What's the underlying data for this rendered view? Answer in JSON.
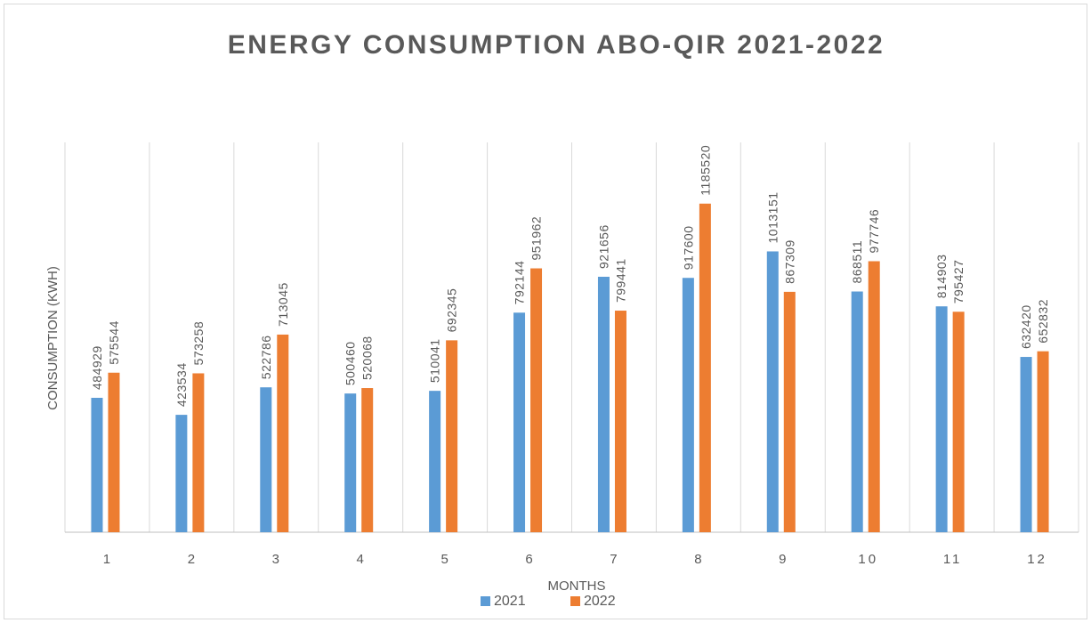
{
  "chart_data": {
    "type": "bar",
    "title": "ENERGY CONSUMPTION ABO-QIR 2021-2022",
    "x_label": "MONTHS",
    "y_label": "CONSUMPTION (KWH)",
    "categories": [
      "1",
      "2",
      "3",
      "4",
      "5",
      "6",
      "7",
      "8",
      "9",
      "10",
      "11",
      "12"
    ],
    "series": [
      {
        "name": "2021",
        "color": "#5b9bd5",
        "values": [
          484929,
          423534,
          522786,
          500460,
          510041,
          792144,
          921656,
          917600,
          1013151,
          868511,
          814903,
          632420
        ]
      },
      {
        "name": "2022",
        "color": "#ed7d31",
        "values": [
          575544,
          573258,
          713045,
          520068,
          692345,
          951962,
          799441,
          1185520,
          867309,
          977746,
          795427,
          652832
        ]
      }
    ],
    "ylim": [
      0,
      1400000
    ],
    "legend": "bottom"
  }
}
